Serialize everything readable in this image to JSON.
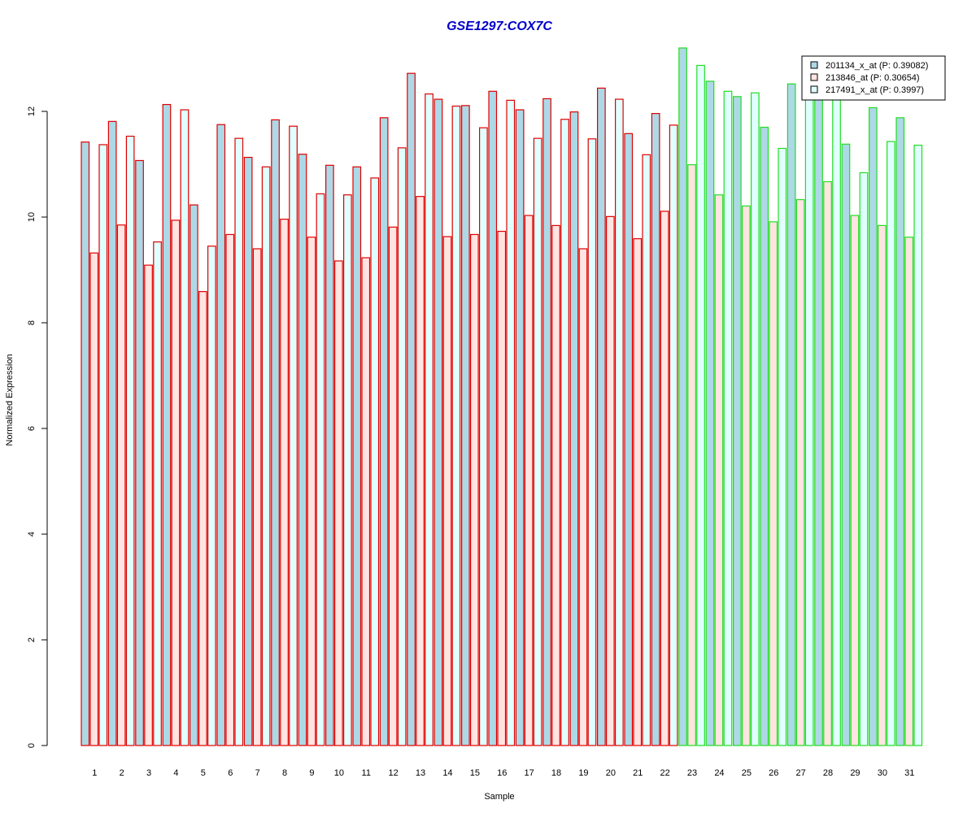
{
  "chart_data": {
    "type": "bar",
    "title": "GSE1297:COX7C",
    "xlabel": "Sample",
    "ylabel": "Normalized Expression",
    "ylim": [
      0,
      13.2
    ],
    "yticks": [
      "0",
      "2",
      "4",
      "6",
      "8",
      "10",
      "12"
    ],
    "categories": [
      "1",
      "2",
      "3",
      "4",
      "5",
      "6",
      "7",
      "8",
      "9",
      "10",
      "11",
      "12",
      "13",
      "14",
      "15",
      "16",
      "17",
      "18",
      "19",
      "20",
      "21",
      "22",
      "23",
      "24",
      "25",
      "26",
      "27",
      "28",
      "29",
      "30",
      "31"
    ],
    "series": [
      {
        "name": "201134_x_at (P: 0.39082)",
        "values": [
          11.42,
          11.81,
          11.07,
          12.13,
          10.23,
          11.75,
          11.13,
          11.84,
          11.19,
          10.98,
          10.95,
          11.88,
          12.72,
          12.23,
          12.11,
          12.38,
          12.03,
          12.24,
          11.99,
          12.44,
          11.58,
          11.96,
          13.2,
          12.57,
          12.28,
          11.7,
          12.52,
          12.45,
          11.38,
          12.07,
          11.88
        ]
      },
      {
        "name": "213846_at (P: 0.30654)",
        "values": [
          9.32,
          9.85,
          9.09,
          9.94,
          8.59,
          9.67,
          9.4,
          9.96,
          9.62,
          9.17,
          9.23,
          9.81,
          10.39,
          9.63,
          9.67,
          9.73,
          10.03,
          9.84,
          9.4,
          10.01,
          9.59,
          10.11,
          10.99,
          10.42,
          10.21,
          9.91,
          10.33,
          10.67,
          10.03,
          9.84,
          9.62
        ]
      },
      {
        "name": "217491_x_at (P: 0.3997)",
        "values": [
          11.37,
          11.53,
          9.53,
          12.03,
          9.45,
          11.49,
          10.95,
          11.72,
          10.44,
          10.42,
          10.74,
          11.31,
          12.33,
          12.1,
          11.69,
          12.21,
          11.49,
          11.85,
          11.48,
          12.23,
          11.18,
          11.74,
          12.87,
          12.38,
          12.35,
          11.3,
          12.36,
          12.4,
          10.84,
          11.43,
          11.36
        ]
      }
    ],
    "group_split_after_sample": 22,
    "colors": {
      "group1_border": "#e00000",
      "group2_border": "#22dd22",
      "series1_fill": "#add8e6",
      "series2_fill": "#ffe4e1",
      "series3_fill": "#e0ffff",
      "title_color": "#0000cc",
      "axis_color": "#000000"
    },
    "legend": {
      "placement": "top-right",
      "entries": [
        "201134_x_at (P: 0.39082)",
        "213846_at (P: 0.30654)",
        "217491_x_at (P: 0.3997)"
      ]
    },
    "grid": false
  }
}
